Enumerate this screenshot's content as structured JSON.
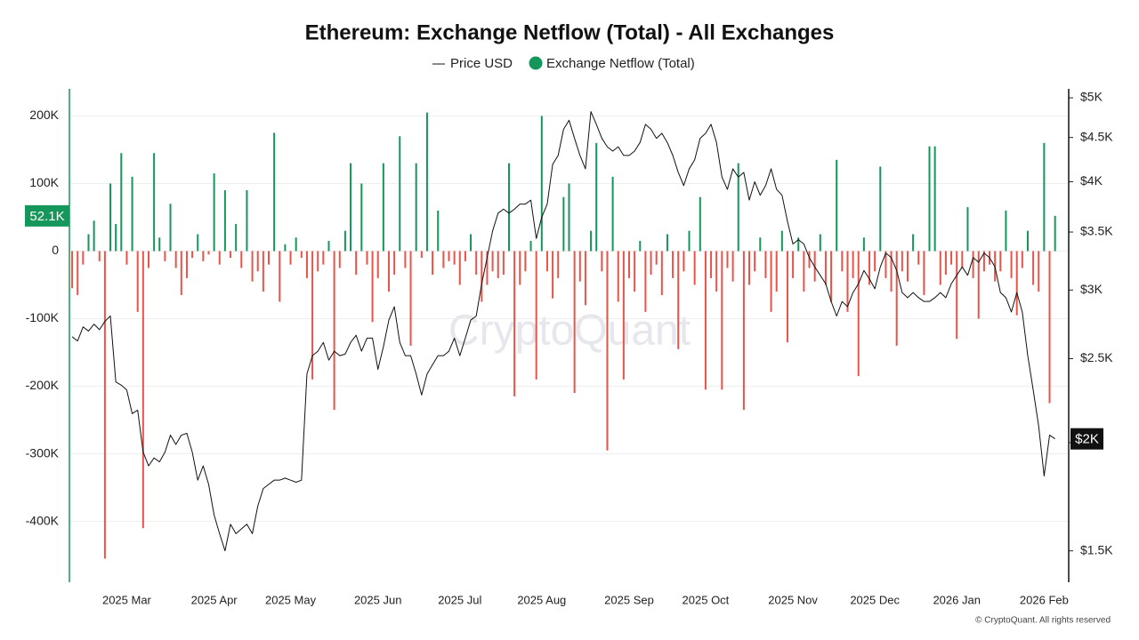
{
  "chart_data": {
    "type": "bar",
    "title": "Ethereum: Exchange Netflow (Total) - All Exchanges",
    "watermark": "CryptoQuant",
    "footer": "© CryptoQuant. All rights reserved",
    "categories": [
      null,
      null,
      null,
      null,
      null,
      null,
      null,
      null,
      null,
      null,
      "2025 Mar",
      null,
      null,
      null,
      null,
      null,
      null,
      null,
      null,
      null,
      null,
      null,
      null,
      null,
      null,
      null,
      "2025 Apr",
      null,
      null,
      null,
      null,
      null,
      null,
      null,
      null,
      null,
      null,
      null,
      null,
      null,
      "2025 May",
      null,
      null,
      null,
      null,
      null,
      null,
      null,
      null,
      null,
      null,
      null,
      null,
      null,
      null,
      null,
      "2025 Jun",
      null,
      null,
      null,
      null,
      null,
      null,
      null,
      null,
      null,
      null,
      null,
      null,
      null,
      null,
      "2025 Jul",
      null,
      null,
      null,
      null,
      null,
      null,
      null,
      null,
      null,
      null,
      null,
      null,
      null,
      null,
      "2025 Aug",
      null,
      null,
      null,
      null,
      null,
      null,
      null,
      null,
      null,
      null,
      null,
      null,
      null,
      null,
      null,
      "2025 Sep",
      null,
      null,
      null,
      null,
      null,
      null,
      null,
      null,
      null,
      null,
      null,
      null,
      null,
      "2025 Oct",
      null,
      null,
      null,
      null,
      null,
      null,
      null,
      null,
      null,
      null,
      null,
      null,
      null,
      null,
      null,
      "2025 Nov",
      null,
      null,
      null,
      null,
      null,
      null,
      null,
      null,
      null,
      null,
      null,
      null,
      null,
      null,
      "2025 Dec",
      null,
      null,
      null,
      null,
      null,
      null,
      null,
      null,
      null,
      null,
      null,
      null,
      null,
      null,
      "2026 Jan",
      null,
      null,
      null,
      null,
      null,
      null,
      null,
      null,
      null,
      null,
      null,
      null,
      null,
      null,
      null,
      "2026 Feb",
      null,
      null,
      null,
      null
    ],
    "series": [
      {
        "name": "Exchange Netflow (Total)",
        "type": "bar",
        "axis": "y",
        "color": "#15965a",
        "negative_color": "#e8534a",
        "last_label": "52.1K",
        "values": [
          -55000,
          -65000,
          -20000,
          25000,
          45000,
          -15000,
          -455000,
          100000,
          40000,
          145000,
          -20000,
          110000,
          -90000,
          -410000,
          -25000,
          145000,
          20000,
          -15000,
          70000,
          -25000,
          -65000,
          -40000,
          -10000,
          25000,
          -15000,
          -5000,
          115000,
          -20000,
          90000,
          -10000,
          40000,
          -25000,
          90000,
          -45000,
          -30000,
          -60000,
          -20000,
          175000,
          -75000,
          10000,
          -20000,
          20000,
          -10000,
          -40000,
          -190000,
          -30000,
          -20000,
          15000,
          -235000,
          -25000,
          30000,
          130000,
          -35000,
          100000,
          -20000,
          -105000,
          -40000,
          130000,
          -60000,
          -35000,
          170000,
          -25000,
          -140000,
          130000,
          -10000,
          205000,
          -35000,
          60000,
          -25000,
          -15000,
          -20000,
          -50000,
          -15000,
          25000,
          -35000,
          -75000,
          -50000,
          -30000,
          -40000,
          -35000,
          130000,
          -215000,
          -50000,
          -30000,
          15000,
          -190000,
          200000,
          -30000,
          -70000,
          -40000,
          80000,
          100000,
          -210000,
          -45000,
          -80000,
          30000,
          160000,
          -30000,
          -295000,
          110000,
          -75000,
          -190000,
          -40000,
          -60000,
          15000,
          -90000,
          -35000,
          -20000,
          -65000,
          25000,
          -40000,
          -145000,
          -30000,
          30000,
          -50000,
          80000,
          -205000,
          -40000,
          -60000,
          -205000,
          -25000,
          -45000,
          130000,
          -235000,
          -50000,
          -30000,
          20000,
          -40000,
          -90000,
          -60000,
          30000,
          -135000,
          -40000,
          20000,
          -60000,
          -25000,
          -45000,
          25000,
          -50000,
          -75000,
          135000,
          -30000,
          -90000,
          -40000,
          -185000,
          20000,
          -50000,
          -30000,
          125000,
          -40000,
          -60000,
          -140000,
          -30000,
          -45000,
          25000,
          -20000,
          -65000,
          155000,
          155000,
          -50000,
          -35000,
          -20000,
          -130000,
          -25000,
          65000,
          -40000,
          -100000,
          -30000,
          -20000,
          -45000,
          -30000,
          60000,
          -40000,
          -95000,
          -25000,
          30000,
          -50000,
          -60000,
          160000,
          -225000,
          52100,
          null,
          null
        ]
      },
      {
        "name": "Price USD",
        "type": "line",
        "axis": "y2",
        "color": "#111111",
        "last_label": "$2K",
        "values": [
          2650,
          2620,
          2720,
          2690,
          2740,
          2700,
          2760,
          2800,
          2350,
          2330,
          2300,
          2160,
          2180,
          1950,
          1880,
          1920,
          1900,
          1950,
          2040,
          1990,
          2040,
          2050,
          1950,
          1810,
          1880,
          1790,
          1650,
          1570,
          1500,
          1610,
          1570,
          1590,
          1610,
          1570,
          1690,
          1770,
          1790,
          1810,
          1810,
          1820,
          1810,
          1800,
          1810,
          2400,
          2520,
          2550,
          2610,
          2490,
          2550,
          2520,
          2530,
          2610,
          2660,
          2550,
          2640,
          2640,
          2430,
          2580,
          2770,
          2870,
          2610,
          2520,
          2520,
          2400,
          2270,
          2400,
          2460,
          2520,
          2520,
          2550,
          2640,
          2520,
          2640,
          2770,
          2800,
          3050,
          3270,
          3510,
          3680,
          3720,
          3680,
          3720,
          3770,
          3770,
          3810,
          3440,
          3640,
          3770,
          4190,
          4290,
          4600,
          4710,
          4490,
          4290,
          4140,
          4820,
          4660,
          4490,
          4390,
          4340,
          4390,
          4290,
          4290,
          4340,
          4440,
          4660,
          4600,
          4490,
          4550,
          4440,
          4290,
          4100,
          3960,
          4140,
          4240,
          4490,
          4550,
          4660,
          4440,
          4050,
          3920,
          4140,
          4050,
          4100,
          3810,
          4000,
          3860,
          3960,
          4140,
          3920,
          3860,
          3600,
          3390,
          3430,
          3390,
          3270,
          3190,
          3120,
          3050,
          2910,
          2800,
          2910,
          2870,
          2980,
          3050,
          3160,
          3090,
          3010,
          3190,
          3310,
          3270,
          3160,
          2980,
          2940,
          2980,
          2940,
          2910,
          2910,
          2940,
          2980,
          2940,
          3050,
          3120,
          3190,
          3120,
          3270,
          3230,
          3310,
          3270,
          3190,
          2980,
          2940,
          2830,
          2980,
          2830,
          2520,
          2300,
          2090,
          1830,
          2040,
          2020,
          null,
          null
        ]
      }
    ],
    "ylim": [
      -490000,
      240000
    ],
    "yticks": [
      {
        "value": -400000,
        "label": "-400K"
      },
      {
        "value": -300000,
        "label": "-300K"
      },
      {
        "value": -200000,
        "label": "-200K"
      },
      {
        "value": -100000,
        "label": "-100K"
      },
      0,
      {
        "value": 100000,
        "label": "100K"
      },
      {
        "value": 200000,
        "label": "200K"
      }
    ],
    "y2lim": [
      1380,
      5120
    ],
    "y2log": true,
    "y2ticks": [
      {
        "value": 1500,
        "label": "$1.5K"
      },
      {
        "value": 2000,
        "label": "$2K"
      },
      {
        "value": 2500,
        "label": "$2.5K"
      },
      {
        "value": 3000,
        "label": "$3K"
      },
      {
        "value": 3500,
        "label": "$3.5K"
      },
      {
        "value": 4000,
        "label": "$4K"
      },
      {
        "value": 4500,
        "label": "$4.5K"
      },
      {
        "value": 5000,
        "label": "$5K"
      }
    ],
    "grid": true,
    "legend": "top"
  }
}
